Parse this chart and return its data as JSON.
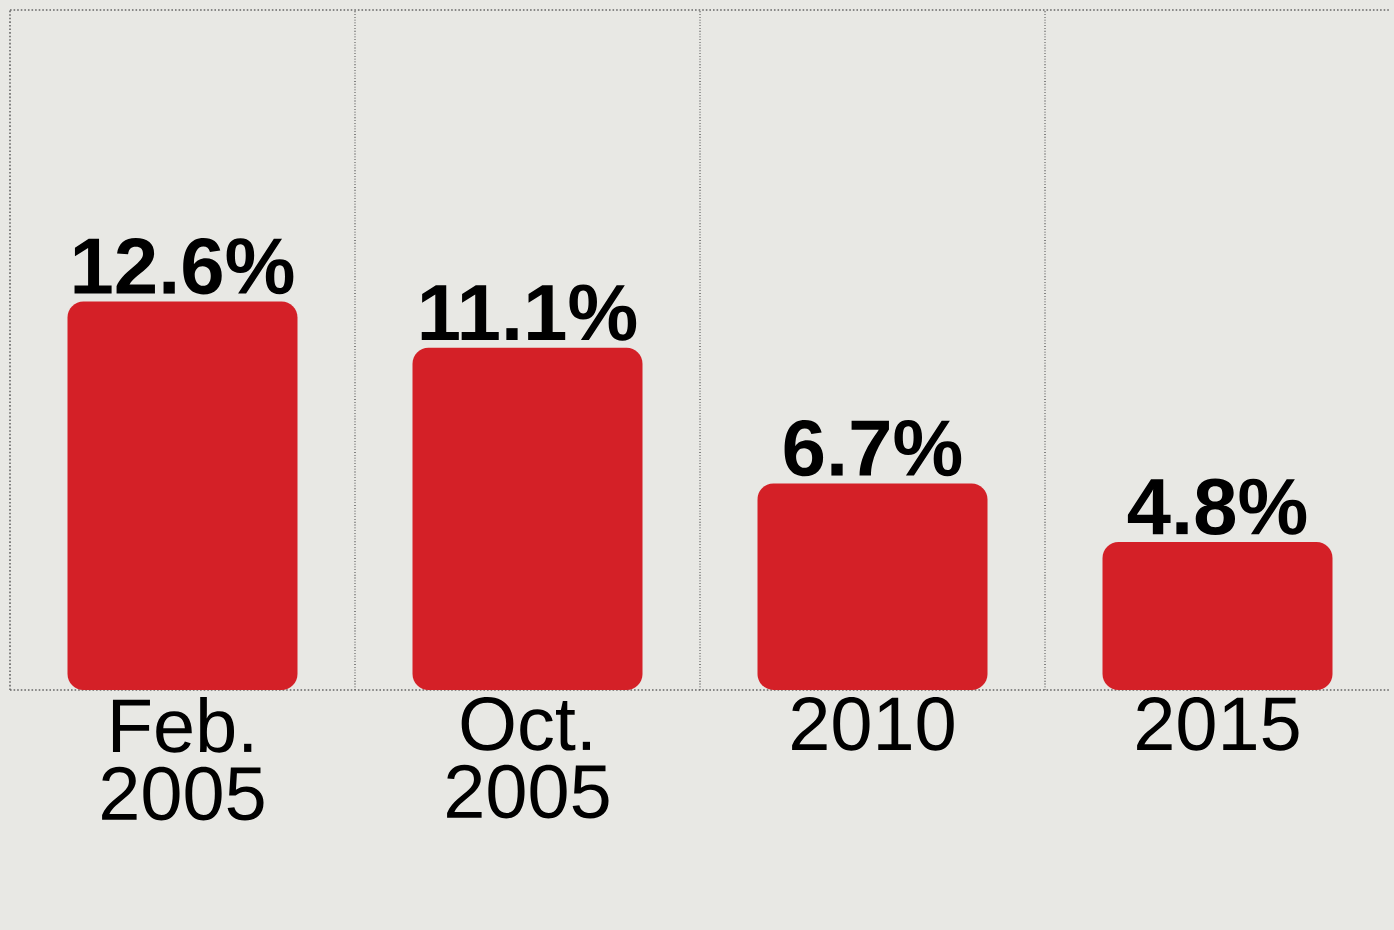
{
  "chart_data": {
    "type": "bar",
    "categories": [
      "Feb. 2005",
      "Oct. 2005",
      "2010",
      "2015"
    ],
    "values": [
      12.6,
      11.1,
      6.7,
      4.8
    ],
    "value_labels": [
      "12.6%",
      "11.1%",
      "6.7%",
      "4.8%"
    ],
    "color": "#d42027",
    "grid": "x"
  }
}
